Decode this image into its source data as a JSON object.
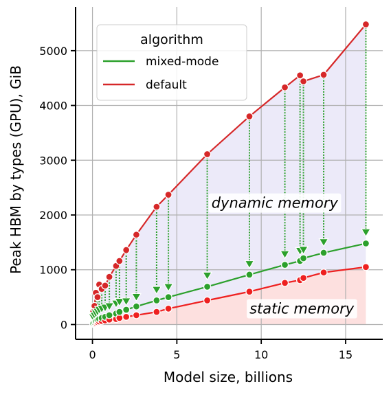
{
  "chart_data": {
    "type": "line",
    "xlabel": "Model size, billions",
    "ylabel": "Peak HBM by types (GPU), GiB",
    "xlim": [
      -1,
      17.2
    ],
    "ylim": [
      -270,
      5800
    ],
    "xticks": [
      0,
      5,
      10,
      15
    ],
    "yticks": [
      0,
      1000,
      2000,
      3000,
      4000,
      5000
    ],
    "grid": true,
    "legend": {
      "title": "algorithm",
      "placement": "top-left",
      "entries": [
        {
          "label": "mixed-mode",
          "color": "#2ca02c"
        },
        {
          "label": "default",
          "color": "#d62728"
        }
      ]
    },
    "x": [
      0.04,
      0.12,
      0.2,
      0.3,
      0.4,
      0.55,
      0.75,
      1.0,
      1.4,
      1.6,
      2.0,
      2.6,
      3.8,
      4.5,
      6.8,
      9.3,
      11.4,
      12.3,
      12.5,
      13.7,
      16.2
    ],
    "series": [
      {
        "name": "mixed-mode",
        "color": "#2ca02c",
        "role": "total",
        "values": [
          130,
          160,
          200,
          230,
          265,
          285,
          305,
          330,
          380,
          410,
          420,
          500,
          630,
          680,
          890,
          1100,
          1280,
          1340,
          1360,
          1500,
          1680
        ],
        "marker": "triangle-down"
      },
      {
        "name": "mixed-mode",
        "color": "#2ca02c",
        "role": "static",
        "values": [
          20,
          35,
          60,
          80,
          100,
          120,
          140,
          170,
          200,
          230,
          270,
          330,
          440,
          500,
          690,
          910,
          1090,
          1160,
          1210,
          1310,
          1480
        ],
        "marker": "circle"
      },
      {
        "name": "default",
        "color": "#d62728",
        "role": "total",
        "values": [
          230,
          340,
          580,
          500,
          730,
          650,
          710,
          870,
          1070,
          1160,
          1360,
          1640,
          2150,
          2370,
          3110,
          3800,
          4330,
          4550,
          4440,
          4560,
          5480
        ],
        "marker": "circle"
      },
      {
        "name": "default",
        "color": "#d62728",
        "role": "static",
        "values": [
          10,
          20,
          35,
          45,
          55,
          65,
          75,
          90,
          100,
          120,
          140,
          170,
          230,
          290,
          440,
          600,
          760,
          810,
          850,
          950,
          1050
        ],
        "marker": "circle"
      }
    ],
    "annotations": [
      {
        "text": "dynamic memory",
        "x": 10.8,
        "y": 2230
      },
      {
        "text": "static memory",
        "x": 12.4,
        "y": 300
      }
    ],
    "colors": {
      "dynamic_fill": "#eceaf9",
      "static_fill": "#fde0df",
      "grid": "#b0b0b0",
      "axis": "#000000"
    }
  }
}
